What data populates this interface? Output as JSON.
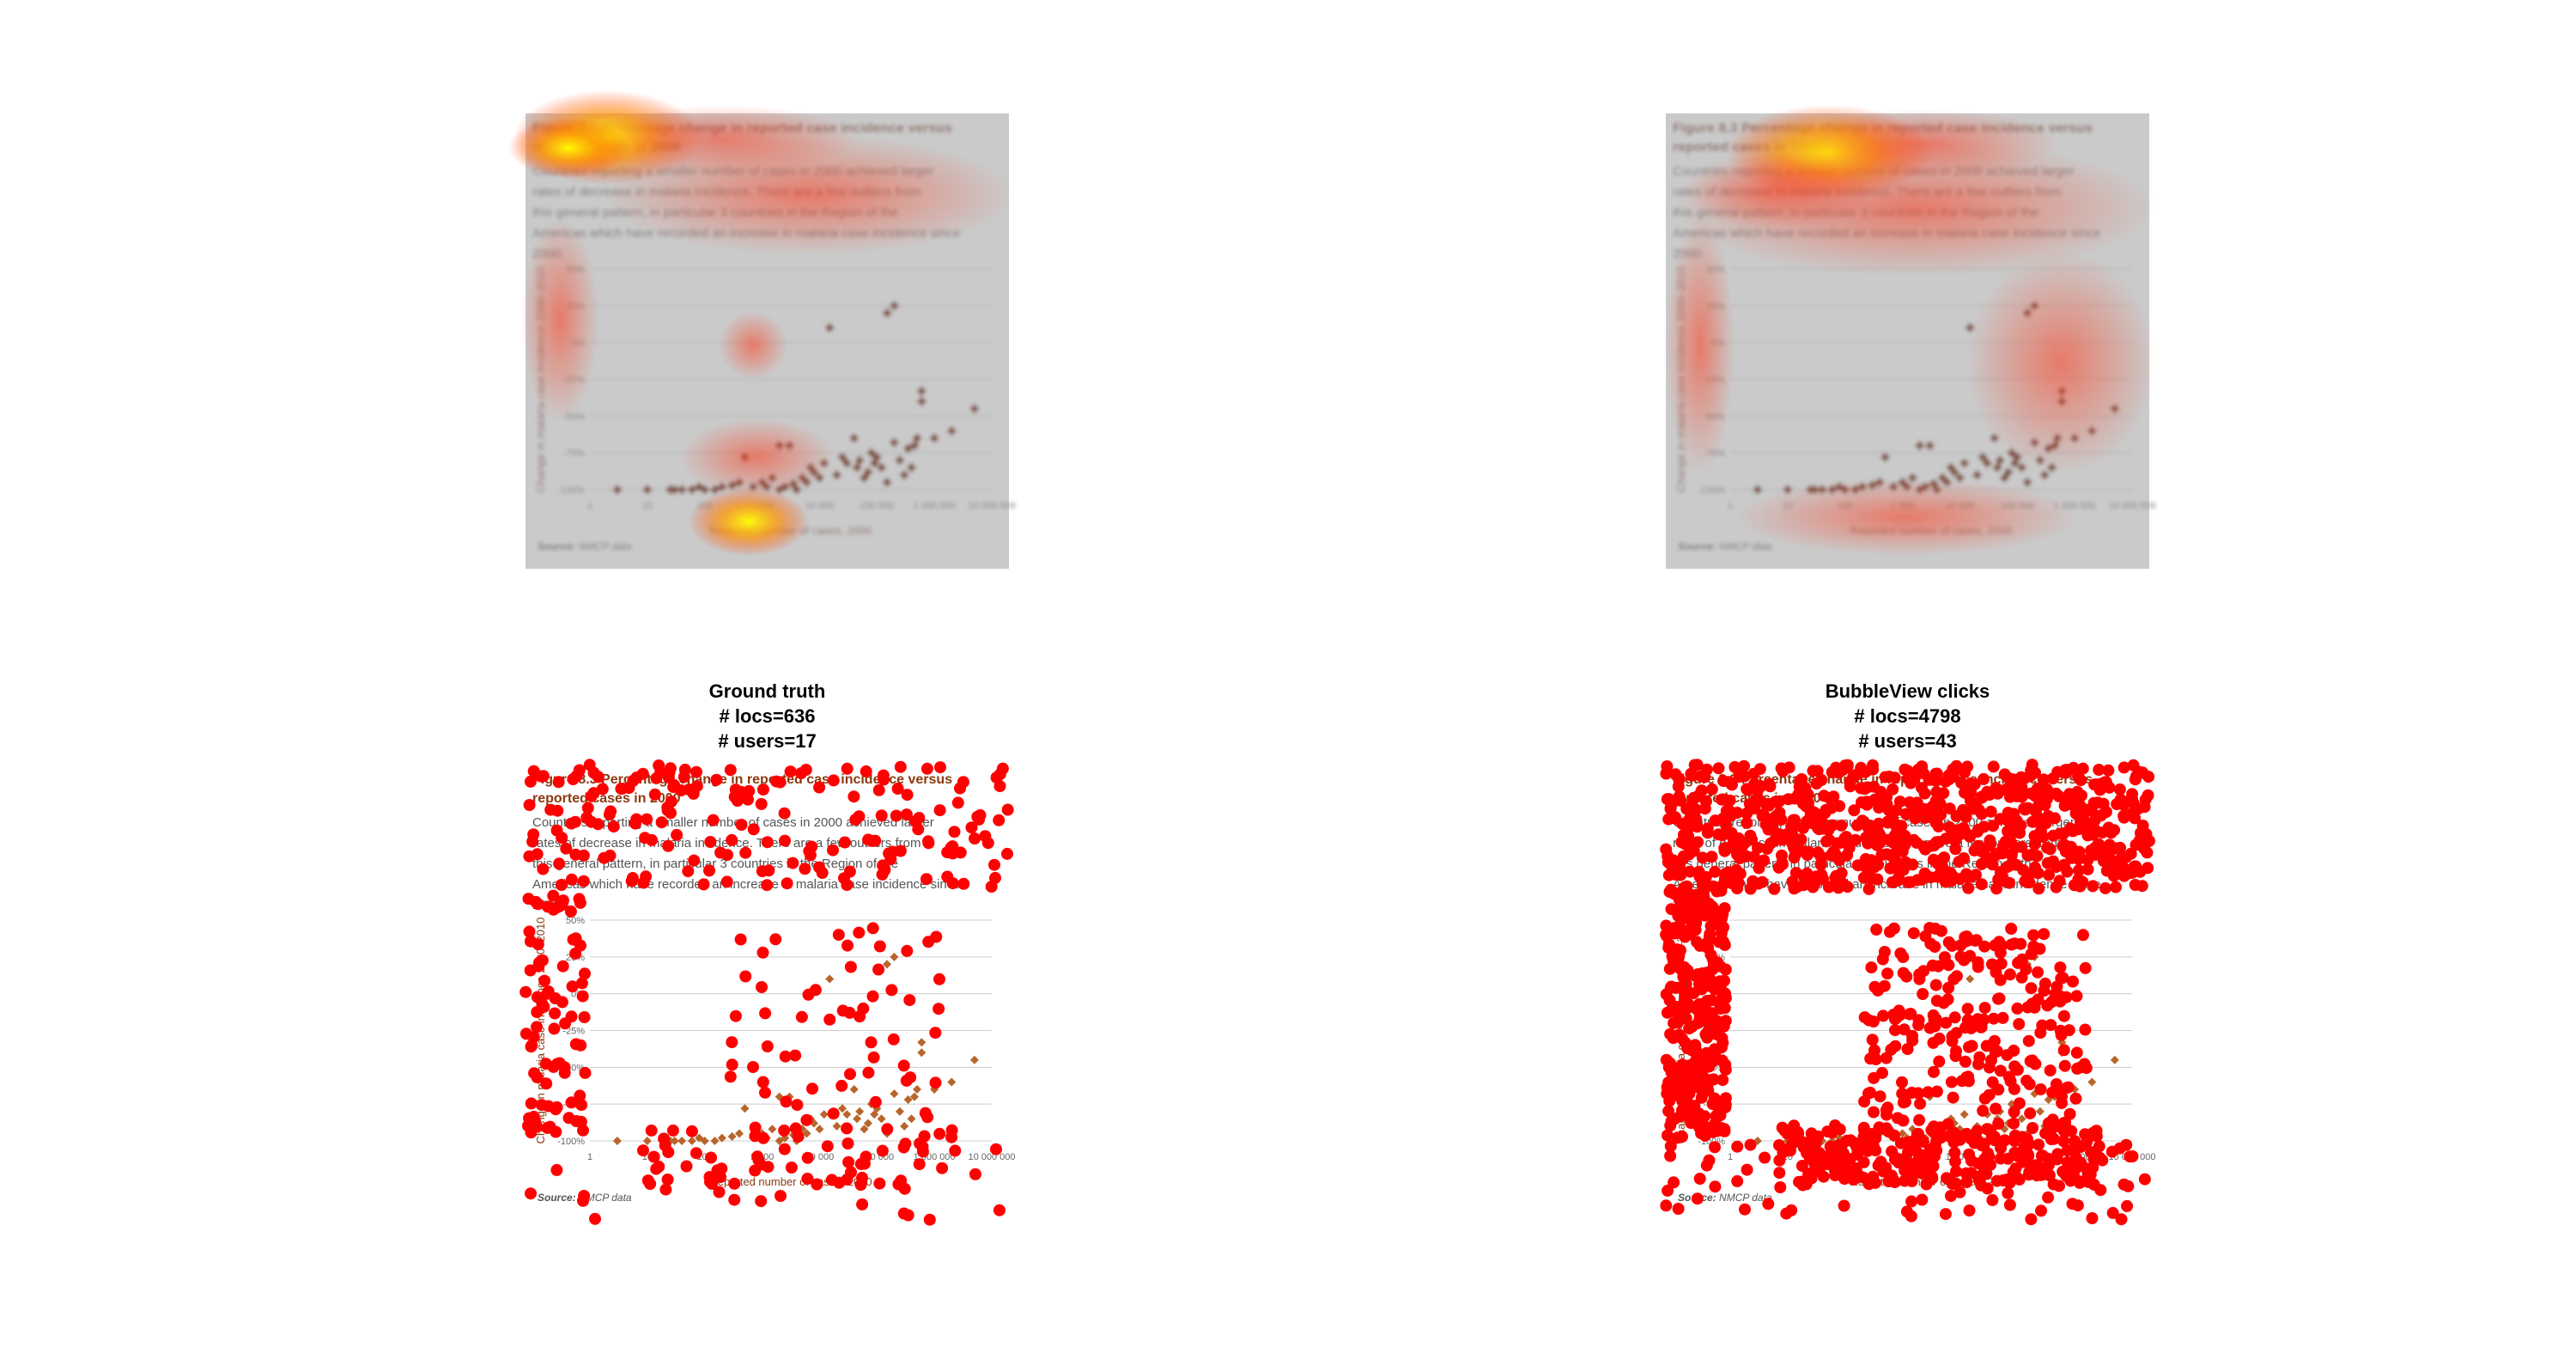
{
  "figure": {
    "title": "Figure 8.3 Percentage change in reported case incidence versus reported cases in 2000",
    "description": "Countries reporting a smaller number of cases in 2000 achieved larger rates of decrease in malaria incidence. There are a few outliers from this general pattern, in particular 3 countries in the Region of the Americas which have recorded an increase in malaria case incidence since 2000.",
    "source_prefix": "Source:",
    "source_text": "NMCP data"
  },
  "panels": {
    "ground_truth": {
      "title": "Ground truth",
      "locs": "# locs=636",
      "users": "# users=17"
    },
    "bubbleview": {
      "title": "BubbleView clicks",
      "locs": "# locs=4798",
      "users": "# users=43"
    }
  },
  "colors": {
    "marker": "#8b3a0f",
    "click": "#ff0000",
    "heat_hot": "#ffff00",
    "heat_warm": "#ff3300",
    "overlay": "#808080",
    "grid": "#cccccc"
  },
  "chart_data": {
    "type": "scatter",
    "title": "Figure 8.3 Percentage change in reported case incidence versus reported cases in 2000",
    "xlabel": "Reported number of cases, 2000",
    "ylabel": "Change in malaria case incidence 2000–2010",
    "x_scale": "log",
    "xlim": [
      1,
      10000000
    ],
    "ylim": [
      -100,
      50
    ],
    "x_ticks": [
      "1",
      "10",
      "100",
      "1 000",
      "10 000",
      "100 000",
      "1 000 000",
      "10 000 000"
    ],
    "y_ticks": [
      "50%",
      "25%",
      "0%",
      "-25%",
      "-50%",
      "-75%",
      "-100%"
    ],
    "grid": "horizontal",
    "points": [
      [
        3,
        -100
      ],
      [
        10,
        -100
      ],
      [
        25,
        -100
      ],
      [
        30,
        -100
      ],
      [
        40,
        -100
      ],
      [
        60,
        -100
      ],
      [
        80,
        -98
      ],
      [
        100,
        -100
      ],
      [
        150,
        -100
      ],
      [
        200,
        -98
      ],
      [
        300,
        -97
      ],
      [
        400,
        -95
      ],
      [
        500,
        -78
      ],
      [
        700,
        -98
      ],
      [
        1000,
        -95
      ],
      [
        1200,
        -98
      ],
      [
        1500,
        -92
      ],
      [
        2000,
        -100
      ],
      [
        2000,
        -70
      ],
      [
        2500,
        -98
      ],
      [
        3000,
        -70
      ],
      [
        3500,
        -96
      ],
      [
        4000,
        -100
      ],
      [
        5000,
        -92
      ],
      [
        6000,
        -95
      ],
      [
        7000,
        -85
      ],
      [
        8000,
        -88
      ],
      [
        10000,
        -92
      ],
      [
        12000,
        -82
      ],
      [
        15000,
        10
      ],
      [
        20000,
        -90
      ],
      [
        25000,
        -78
      ],
      [
        30000,
        -82
      ],
      [
        40000,
        -65
      ],
      [
        45000,
        -85
      ],
      [
        50000,
        -80
      ],
      [
        60000,
        -92
      ],
      [
        70000,
        -88
      ],
      [
        80000,
        -75
      ],
      [
        90000,
        -82
      ],
      [
        100000,
        -78
      ],
      [
        120000,
        -85
      ],
      [
        150000,
        -95
      ],
      [
        150000,
        20
      ],
      [
        200000,
        -68
      ],
      [
        200000,
        25
      ],
      [
        250000,
        -80
      ],
      [
        300000,
        -90
      ],
      [
        350000,
        -72
      ],
      [
        400000,
        -85
      ],
      [
        450000,
        -70
      ],
      [
        500000,
        -65
      ],
      [
        600000,
        -40
      ],
      [
        600000,
        -33
      ],
      [
        1000000,
        -65
      ],
      [
        2000000,
        -60
      ],
      [
        5000000,
        -45
      ]
    ]
  }
}
